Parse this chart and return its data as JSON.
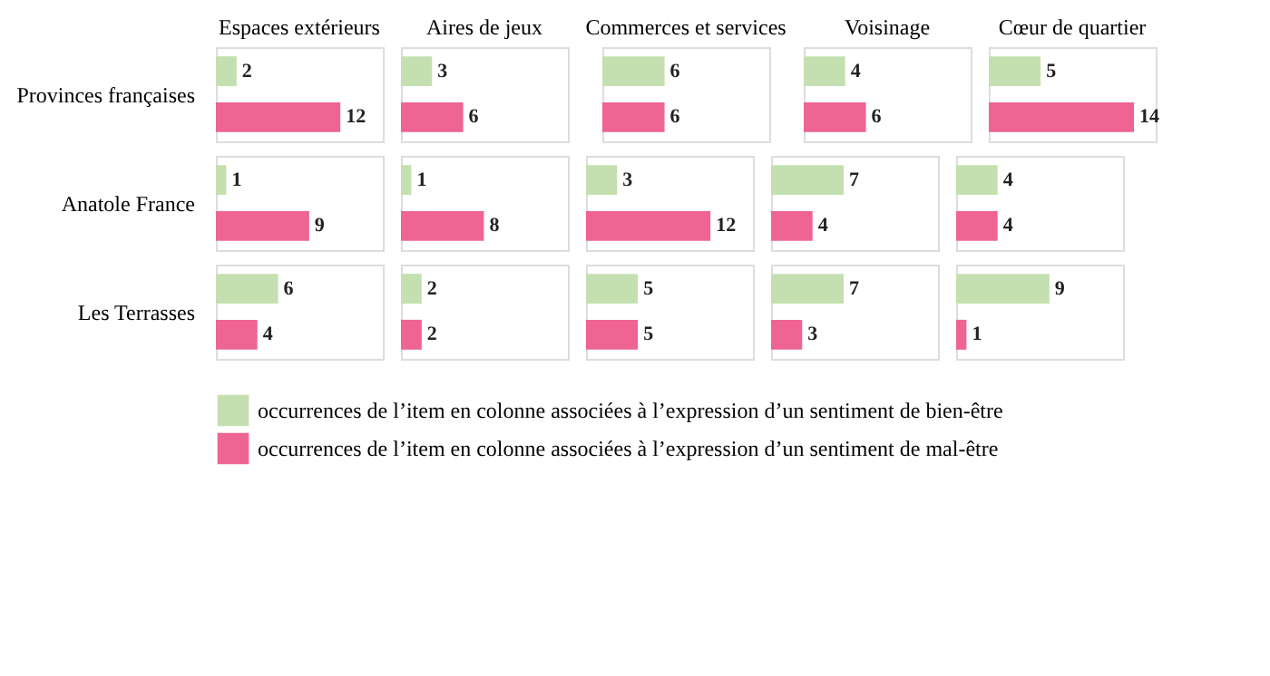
{
  "chart_data": [
    {
      "type": "bar",
      "orientation": "horizontal",
      "title": "Espaces extérieurs",
      "ylabel": "Provinces françaises",
      "categories": [
        null
      ],
      "data_labels": true,
      "legend": "bottom",
      "series": [
        {
          "name": "occurrences de l’item en colonne associées à l’expression d’un sentiment de bien-être",
          "color": "#c5e0b0",
          "values": [
            2
          ]
        },
        {
          "name": "occurrences de l’item en colonne associées à l’expression d’un sentiment de mal-être",
          "color": "#ee6492",
          "values": [
            12
          ]
        }
      ]
    },
    {
      "type": "bar",
      "orientation": "horizontal",
      "title": "Aires de jeux",
      "categories": [
        null
      ],
      "data_labels": true,
      "legend": "bottom",
      "series": [
        {
          "name": "occurrences de l’item en colonne associées à l’expression d’un sentiment de bien-être",
          "color": "#c5e0b0",
          "values": [
            3
          ]
        },
        {
          "name": "occurrences de l’item en colonne associées à l’expression d’un sentiment de mal-être",
          "color": "#ee6492",
          "values": [
            6
          ]
        }
      ]
    },
    {
      "type": "bar",
      "orientation": "horizontal",
      "title": "Commerces et services",
      "categories": [
        null
      ],
      "data_labels": true,
      "legend": "bottom",
      "series": [
        {
          "name": "occurrences de l’item en colonne associées à l’expression d’un sentiment de bien-être",
          "color": "#c5e0b0",
          "values": [
            6
          ]
        },
        {
          "name": "occurrences de l’item en colonne associées à l’expression d’un sentiment de mal-être",
          "color": "#ee6492",
          "values": [
            6
          ]
        }
      ]
    },
    {
      "type": "bar",
      "orientation": "horizontal",
      "title": "Voisinage",
      "categories": [
        null
      ],
      "data_labels": true,
      "legend": "bottom",
      "series": [
        {
          "name": "occurrences de l’item en colonne associées à l’expression d’un sentiment de bien-être",
          "color": "#c5e0b0",
          "values": [
            4
          ]
        },
        {
          "name": "occurrences de l’item en colonne associées à l’expression d’un sentiment de mal-être",
          "color": "#ee6492",
          "values": [
            6
          ]
        }
      ]
    },
    {
      "type": "bar",
      "orientation": "horizontal",
      "title": "Cœur de quartier",
      "categories": [
        null
      ],
      "data_labels": true,
      "legend": "bottom",
      "series": [
        {
          "name": "occurrences de l’item en colonne associées à l’expression d’un sentiment de bien-être",
          "color": "#c5e0b0",
          "values": [
            5
          ]
        },
        {
          "name": "occurrences de l’item en colonne associées à l’expression d’un sentiment de mal-être",
          "color": "#ee6492",
          "values": [
            14
          ]
        }
      ]
    },
    {
      "type": "bar",
      "orientation": "horizontal",
      "ylabel": "Anatole France",
      "categories": [
        null
      ],
      "data_labels": true,
      "legend": "bottom",
      "series": [
        {
          "name": "occurrences de l’item en colonne associées à l’expression d’un sentiment de bien-être",
          "color": "#c5e0b0",
          "values": [
            1
          ]
        },
        {
          "name": "occurrences de l’item en colonne associées à l’expression d’un sentiment de mal-être",
          "color": "#ee6492",
          "values": [
            9
          ]
        }
      ]
    },
    {
      "type": "bar",
      "orientation": "horizontal",
      "categories": [
        null
      ],
      "data_labels": true,
      "legend": "bottom",
      "series": [
        {
          "name": "occurrences de l’item en colonne associées à l’expression d’un sentiment de bien-être",
          "color": "#c5e0b0",
          "values": [
            1
          ]
        },
        {
          "name": "occurrences de l’item en colonne associées à l’expression d’un sentiment de mal-être",
          "color": "#ee6492",
          "values": [
            8
          ]
        }
      ]
    },
    {
      "type": "bar",
      "orientation": "horizontal",
      "categories": [
        null
      ],
      "data_labels": true,
      "legend": "bottom",
      "series": [
        {
          "name": "occurrences de l’item en colonne associées à l’expression d’un sentiment de bien-être",
          "color": "#c5e0b0",
          "values": [
            3
          ]
        },
        {
          "name": "occurrences de l’item en colonne associées à l’expression d’un sentiment de mal-être",
          "color": "#ee6492",
          "values": [
            12
          ]
        }
      ]
    },
    {
      "type": "bar",
      "orientation": "horizontal",
      "categories": [
        null
      ],
      "data_labels": true,
      "legend": "bottom",
      "series": [
        {
          "name": "occurrences de l’item en colonne associées à l’expression d’un sentiment de bien-être",
          "color": "#c5e0b0",
          "values": [
            7
          ]
        },
        {
          "name": "occurrences de l’item en colonne associées à l’expression d’un sentiment de mal-être",
          "color": "#ee6492",
          "values": [
            4
          ]
        }
      ]
    },
    {
      "type": "bar",
      "orientation": "horizontal",
      "categories": [
        null
      ],
      "data_labels": true,
      "legend": "bottom",
      "series": [
        {
          "name": "occurrences de l’item en colonne associées à l’expression d’un sentiment de bien-être",
          "color": "#c5e0b0",
          "values": [
            4
          ]
        },
        {
          "name": "occurrences de l’item en colonne associées à l’expression d’un sentiment de mal-être",
          "color": "#ee6492",
          "values": [
            4
          ]
        }
      ]
    },
    {
      "type": "bar",
      "orientation": "horizontal",
      "ylabel": "Les Terrasses",
      "categories": [
        null
      ],
      "data_labels": true,
      "legend": "bottom",
      "series": [
        {
          "name": "occurrences de l’item en colonne associées à l’expression d’un sentiment de bien-être",
          "color": "#c5e0b0",
          "values": [
            6
          ]
        },
        {
          "name": "occurrences de l’item en colonne associées à l’expression d’un sentiment de mal-être",
          "color": "#ee6492",
          "values": [
            4
          ]
        }
      ]
    },
    {
      "type": "bar",
      "orientation": "horizontal",
      "categories": [
        null
      ],
      "data_labels": true,
      "legend": "bottom",
      "series": [
        {
          "name": "occurrences de l’item en colonne associées à l’expression d’un sentiment de bien-être",
          "color": "#c5e0b0",
          "values": [
            2
          ]
        },
        {
          "name": "occurrences de l’item en colonne associées à l’expression d’un sentiment de mal-être",
          "color": "#ee6492",
          "values": [
            2
          ]
        }
      ]
    },
    {
      "type": "bar",
      "orientation": "horizontal",
      "categories": [
        null
      ],
      "data_labels": true,
      "legend": "bottom",
      "series": [
        {
          "name": "occurrences de l’item en colonne associées à l’expression d’un sentiment de bien-être",
          "color": "#c5e0b0",
          "values": [
            5
          ]
        },
        {
          "name": "occurrences de l’item en colonne associées à l’expression d’un sentiment de mal-être",
          "color": "#ee6492",
          "values": [
            5
          ]
        }
      ]
    },
    {
      "type": "bar",
      "orientation": "horizontal",
      "categories": [
        null
      ],
      "data_labels": true,
      "legend": "bottom",
      "series": [
        {
          "name": "occurrences de l’item en colonne associées à l’expression d’un sentiment de bien-être",
          "color": "#c5e0b0",
          "values": [
            7
          ]
        },
        {
          "name": "occurrences de l’item en colonne associées à l’expression d’un sentiment de mal-être",
          "color": "#ee6492",
          "values": [
            3
          ]
        }
      ]
    },
    {
      "type": "bar",
      "orientation": "horizontal",
      "categories": [
        null
      ],
      "data_labels": true,
      "legend": "bottom",
      "series": [
        {
          "name": "occurrences de l’item en colonne associées à l’expression d’un sentiment de bien-être",
          "color": "#c5e0b0",
          "values": [
            9
          ]
        },
        {
          "name": "occurrences de l’item en colonne associées à l’expression d’un sentiment de mal-être",
          "color": "#ee6492",
          "values": [
            1
          ]
        }
      ]
    }
  ]
}
